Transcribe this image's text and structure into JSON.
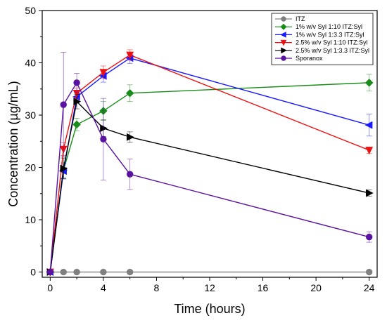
{
  "chart_data": {
    "type": "line",
    "xlabel": "Time (hours)",
    "ylabel": "Concentration (µg/mL)",
    "xlim": [
      -0.6,
      24.6
    ],
    "ylim": [
      -1,
      50
    ],
    "x_ticks": [
      0,
      4,
      8,
      12,
      16,
      20,
      24
    ],
    "x_tick_labels": [
      "0",
      "4",
      "8",
      "12",
      "16",
      "20",
      "24"
    ],
    "y_ticks": [
      0,
      10,
      20,
      30,
      40,
      50
    ],
    "y_tick_labels": [
      "0",
      "10",
      "20",
      "30",
      "40",
      "50"
    ],
    "grid": false,
    "legend_position": "top-right",
    "series": [
      {
        "name": "ITZ",
        "color": "#808080",
        "marker": "circle",
        "x": [
          0,
          1,
          2,
          4,
          6,
          24
        ],
        "y": [
          0,
          0,
          0,
          0,
          0,
          0
        ],
        "err": [
          0,
          0,
          0,
          0,
          0,
          0
        ]
      },
      {
        "name": "1% w/v Syl 1:10 ITZ:Syl",
        "color": "#1a8c1a",
        "marker": "diamond",
        "x": [
          0,
          1,
          2,
          4,
          6,
          24
        ],
        "y": [
          0,
          19.5,
          28.2,
          30.8,
          34.2,
          36.2
        ],
        "err": [
          0,
          1.5,
          1.2,
          1.8,
          1.6,
          1.6
        ]
      },
      {
        "name": "1% w/v Syl 1:3.3 ITZ:Syl",
        "color": "#1a1aff",
        "marker": "triangle-left",
        "x": [
          0,
          1,
          2,
          4,
          6,
          24
        ],
        "y": [
          0,
          19.3,
          33.5,
          37.5,
          40.9,
          28.1
        ],
        "err": [
          0,
          1.4,
          1.2,
          1.2,
          1.0,
          2.1
        ]
      },
      {
        "name": "2.5% w/v Syl 1:10 ITZ:Syl",
        "color": "#ee1111",
        "marker": "triangle-down",
        "x": [
          0,
          1,
          2,
          4,
          6,
          24
        ],
        "y": [
          0,
          23.5,
          34.2,
          38.2,
          41.5,
          23.3
        ],
        "err": [
          0,
          1.2,
          1.0,
          1.2,
          1.0,
          0.6
        ]
      },
      {
        "name": "2.5% w/v Syl 1:3.3 ITZ:Syl",
        "color": "#000000",
        "marker": "triangle-right",
        "x": [
          0,
          1,
          2,
          4,
          6,
          24
        ],
        "y": [
          0,
          19.8,
          32.6,
          27.5,
          25.8,
          15.1
        ],
        "err": [
          0,
          2.0,
          1.4,
          1.6,
          1.0,
          0.6
        ]
      },
      {
        "name": "Sporanox",
        "color": "#5a12a0",
        "marker": "circle",
        "x": [
          0,
          1,
          2,
          4,
          6,
          24
        ],
        "y": [
          0,
          32.0,
          36.2,
          25.4,
          18.7,
          6.7
        ],
        "err": [
          0,
          10.0,
          1.8,
          7.8,
          2.9,
          1.0
        ]
      }
    ]
  }
}
